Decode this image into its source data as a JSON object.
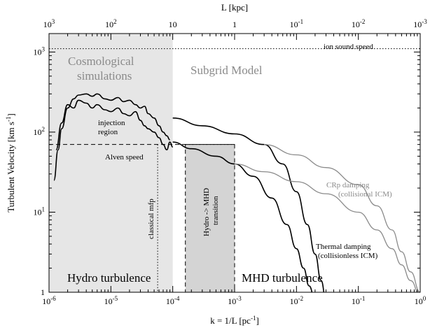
{
  "chart_data": {
    "type": "line",
    "xlabel": "k = 1/L [pc",
    "xlabel_sup": "-1",
    "xlabel_end": "]",
    "ylabel": "Turbulent Velocity [km s",
    "ylabel_sup": "-1",
    "ylabel_end": "]",
    "top_xlabel": "L [kpc]",
    "x_scale": "log",
    "y_scale": "log",
    "xlim": [
      1e-06,
      1
    ],
    "ylim": [
      1,
      1700
    ],
    "top_xlim": [
      1000,
      0.001
    ],
    "bottom_ticks": [
      {
        "value": 1e-06,
        "base": "10",
        "exp": "-6"
      },
      {
        "value": 1e-05,
        "base": "10",
        "exp": "-5"
      },
      {
        "value": 0.0001,
        "base": "10",
        "exp": "-4"
      },
      {
        "value": 0.001,
        "base": "10",
        "exp": "-3"
      },
      {
        "value": 0.01,
        "base": "10",
        "exp": "-2"
      },
      {
        "value": 0.1,
        "base": "10",
        "exp": "-1"
      },
      {
        "value": 1,
        "base": "10",
        "exp": "0"
      }
    ],
    "top_ticks": [
      {
        "value": 1000,
        "base": "10",
        "exp": "3"
      },
      {
        "value": 100,
        "base": "10",
        "exp": "2"
      },
      {
        "value": 10,
        "base": "10",
        "exp": ""
      },
      {
        "value": 1,
        "base": "1",
        "exp": ""
      },
      {
        "value": 0.1,
        "base": "10",
        "exp": "-1"
      },
      {
        "value": 0.01,
        "base": "10",
        "exp": "-2"
      },
      {
        "value": 0.001,
        "base": "10",
        "exp": "-3"
      }
    ],
    "left_ticks": [
      {
        "value": 1,
        "base": "1",
        "exp": ""
      },
      {
        "value": 10,
        "base": "10",
        "exp": "1"
      },
      {
        "value": 100,
        "base": "10",
        "exp": "2"
      },
      {
        "value": 1000,
        "base": "10",
        "exp": "3"
      }
    ],
    "regions": [
      {
        "name": "cosmological-simulations",
        "x_range": [
          1e-06,
          0.0001
        ],
        "color": "#e6e6e6"
      },
      {
        "name": "hydro-mhd-transition",
        "x_range": [
          0.00016,
          0.001
        ],
        "y_range": [
          1,
          70
        ],
        "color": "#d4d4d4"
      }
    ],
    "reference_lines": {
      "ion_sound_speed": 1100,
      "alfven_speed": 70,
      "classical_mfp_k": 5.7e-05
    },
    "series": [
      {
        "color": "#000000",
        "points": [
          [
            1.2e-06,
            25
          ],
          [
            1.4e-06,
            60
          ],
          [
            1.6e-06,
            110
          ],
          [
            2e-06,
            200
          ],
          [
            2.5e-06,
            260
          ],
          [
            3e-06,
            290
          ],
          [
            4e-06,
            300
          ],
          [
            5e-06,
            280
          ],
          [
            6e-06,
            300
          ],
          [
            8e-06,
            260
          ],
          [
            1e-05,
            250
          ],
          [
            1.3e-05,
            270
          ],
          [
            1.6e-05,
            240
          ],
          [
            2e-05,
            250
          ],
          [
            2.5e-05,
            220
          ],
          [
            3e-05,
            200
          ],
          [
            3.5e-05,
            210
          ],
          [
            4e-05,
            170
          ],
          [
            5e-05,
            150
          ],
          [
            6e-05,
            120
          ],
          [
            7e-05,
            100
          ],
          [
            8e-05,
            90
          ],
          [
            9e-05,
            80
          ]
        ]
      },
      {
        "color": "#000000",
        "points": [
          [
            1.3e-06,
            60
          ],
          [
            1.6e-06,
            130
          ],
          [
            2e-06,
            220
          ],
          [
            2.5e-06,
            200
          ],
          [
            3e-06,
            250
          ],
          [
            4e-06,
            230
          ],
          [
            5e-06,
            200
          ],
          [
            6e-06,
            220
          ],
          [
            8e-06,
            190
          ],
          [
            1e-05,
            180
          ],
          [
            1.3e-05,
            200
          ],
          [
            1.6e-05,
            170
          ],
          [
            2e-05,
            160
          ],
          [
            2.5e-05,
            180
          ],
          [
            3e-05,
            140
          ],
          [
            3.5e-05,
            120
          ],
          [
            4e-05,
            110
          ],
          [
            5e-05,
            100
          ],
          [
            6e-05,
            85
          ],
          [
            7e-05,
            70
          ],
          [
            8e-05,
            60
          ],
          [
            9e-05,
            75
          ],
          [
            0.0001,
            65
          ]
        ]
      },
      {
        "color": "#000000",
        "points": [
          [
            0.0001,
            150
          ],
          [
            0.0003,
            120
          ],
          [
            0.001,
            95
          ],
          [
            0.003,
            70
          ],
          [
            0.006,
            40
          ],
          [
            0.01,
            18
          ],
          [
            0.015,
            7
          ],
          [
            0.02,
            3
          ],
          [
            0.025,
            1.4
          ],
          [
            0.03,
            0.8
          ]
        ]
      },
      {
        "color": "#000000",
        "points": [
          [
            0.0001,
            75
          ],
          [
            0.0002,
            62
          ],
          [
            0.0005,
            50
          ],
          [
            0.001,
            40
          ],
          [
            0.002,
            28
          ],
          [
            0.004,
            15
          ],
          [
            0.007,
            7
          ],
          [
            0.01,
            3.5
          ],
          [
            0.013,
            2
          ],
          [
            0.016,
            1.2
          ],
          [
            0.02,
            0.8
          ]
        ]
      },
      {
        "color": "#8a8a8a",
        "points": [
          [
            0.003,
            70
          ],
          [
            0.01,
            52
          ],
          [
            0.03,
            36
          ],
          [
            0.1,
            22
          ],
          [
            0.2,
            12
          ],
          [
            0.35,
            6
          ],
          [
            0.5,
            3.2
          ],
          [
            0.7,
            1.8
          ],
          [
            1,
            1
          ]
        ]
      },
      {
        "color": "#8a8a8a",
        "points": [
          [
            0.001,
            40
          ],
          [
            0.003,
            32
          ],
          [
            0.01,
            24
          ],
          [
            0.03,
            17
          ],
          [
            0.1,
            10
          ],
          [
            0.2,
            6
          ],
          [
            0.35,
            3.5
          ],
          [
            0.5,
            2.2
          ],
          [
            0.7,
            1.4
          ],
          [
            1,
            0.9
          ]
        ]
      }
    ]
  },
  "labels": {
    "cosmological_line1": "Cosmological",
    "cosmological_line2": "simulations",
    "subgrid": "Subgrid Model",
    "ion_sound": "ion sound speed",
    "injection_line1": "injection",
    "injection_line2": "region",
    "alfven": "Alven speed",
    "classical_mfp": "classical mfp",
    "transition_line1": "Hydro -> MHD",
    "transition_line2": "transition",
    "crp_line1": "CRp damping",
    "crp_line2": "(collisional ICM)",
    "thermal_line1": "Thermal damping",
    "thermal_line2": "(collisionless ICM)",
    "hydro": "Hydro turbulence",
    "mhd": "MHD turbulence"
  }
}
